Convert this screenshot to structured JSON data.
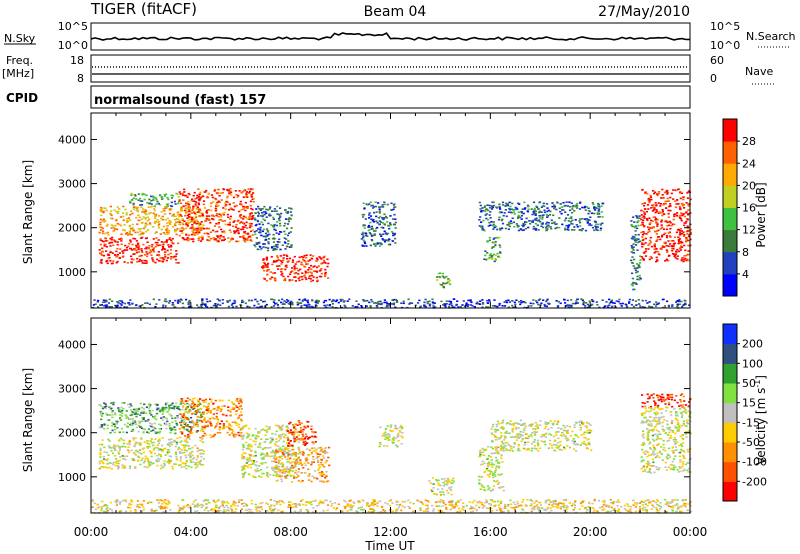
{
  "header": {
    "radar_title": "TIGER (fitACF)",
    "beam_label": "Beam 04",
    "date_label": "27/May/2010"
  },
  "params": {
    "nsky_label": "N.Sky",
    "nsearch_label": "N.Search",
    "freq_label": "Freq.",
    "freq_unit": "[MHz]",
    "nave_label": "Nave",
    "cpid_label": "CPID",
    "cpid_value": "normalsound (fast) 157",
    "noise_ticks": [
      "10^5",
      "10^0"
    ],
    "freq_ticks_left": [
      "18",
      "8"
    ],
    "nave_ticks_right": [
      "60",
      "0"
    ]
  },
  "chart_data": [
    {
      "type": "heatmap",
      "ylabel": "Slant Range [km]",
      "xlabel": "",
      "yticks": [
        "1000",
        "2000",
        "3000",
        "4000"
      ],
      "ylim": [
        180,
        4600
      ],
      "xlim": [
        0,
        24
      ],
      "colorbar": {
        "label": "Power [dB]",
        "ticks": [
          "4",
          "8",
          "12",
          "16",
          "20",
          "24",
          "28"
        ],
        "range": [
          0,
          32
        ],
        "colors": [
          "#0000ff",
          "#2040c0",
          "#3a7a3a",
          "#40c040",
          "#c0d020",
          "#ffaa00",
          "#ff6000",
          "#ff0000"
        ]
      },
      "echo_regions": [
        {
          "t0": 0.3,
          "t1": 3.5,
          "r0": 1200,
          "r1": 1800,
          "value": 30
        },
        {
          "t0": 0.3,
          "t1": 4.5,
          "r0": 1850,
          "r1": 2500,
          "value": 22
        },
        {
          "t0": 1.5,
          "t1": 3.5,
          "r0": 2500,
          "r1": 2800,
          "value": 12
        },
        {
          "t0": 3.5,
          "t1": 6.5,
          "r0": 1700,
          "r1": 2900,
          "value": 28
        },
        {
          "t0": 6.5,
          "t1": 8.0,
          "r0": 1500,
          "r1": 2500,
          "value": 8
        },
        {
          "t0": 6.8,
          "t1": 9.5,
          "r0": 800,
          "r1": 1400,
          "value": 30
        },
        {
          "t0": 10.8,
          "t1": 12.2,
          "r0": 1600,
          "r1": 2600,
          "value": 8
        },
        {
          "t0": 13.8,
          "t1": 14.4,
          "r0": 650,
          "r1": 1000,
          "value": 14
        },
        {
          "t0": 15.7,
          "t1": 16.4,
          "r0": 1250,
          "r1": 1800,
          "value": 12
        },
        {
          "t0": 15.5,
          "t1": 20.5,
          "r0": 1950,
          "r1": 2600,
          "value": 8
        },
        {
          "t0": 21.6,
          "t1": 22.0,
          "r0": 600,
          "r1": 2300,
          "value": 10
        },
        {
          "t0": 22.0,
          "t1": 24.0,
          "r0": 1250,
          "r1": 2900,
          "value": 30
        },
        {
          "t0": 0.0,
          "t1": 24.0,
          "r0": 200,
          "r1": 400,
          "value": 6
        }
      ]
    },
    {
      "type": "heatmap",
      "ylabel": "Slant Range [km]",
      "xlabel": "Time UT",
      "yticks": [
        "1000",
        "2000",
        "3000",
        "4000"
      ],
      "ylim": [
        180,
        4600
      ],
      "xlim": [
        0,
        24
      ],
      "xticks": [
        "00:00",
        "04:00",
        "08:00",
        "12:00",
        "16:00",
        "20:00",
        "00:00"
      ],
      "colorbar": {
        "label": "Velocity [m s",
        "label_sup": "-1",
        "label_end": "]",
        "ticks": [
          "200",
          "100",
          "50",
          "15",
          "-15",
          "-50",
          "-100",
          "-200"
        ],
        "range": [
          -250,
          250
        ],
        "colors": [
          "#ff0000",
          "#ff5000",
          "#ff9000",
          "#ffcc00",
          "#c0c0c0",
          "#80e040",
          "#30a030",
          "#305080",
          "#1030ff"
        ]
      },
      "echo_regions": [
        {
          "t0": 0.3,
          "t1": 4.5,
          "r0": 1200,
          "r1": 1900,
          "value": 0
        },
        {
          "t0": 0.3,
          "t1": 4.5,
          "r0": 2000,
          "r1": 2700,
          "value": 80
        },
        {
          "t0": 3.5,
          "t1": 6.0,
          "r0": 1900,
          "r1": 2800,
          "value": -120
        },
        {
          "t0": 6.0,
          "t1": 8.3,
          "r0": 1000,
          "r1": 2200,
          "value": 0
        },
        {
          "t0": 7.3,
          "t1": 9.5,
          "r0": 900,
          "r1": 1700,
          "value": -80
        },
        {
          "t0": 7.8,
          "t1": 9.0,
          "r0": 1700,
          "r1": 2300,
          "value": -180
        },
        {
          "t0": 11.5,
          "t1": 12.5,
          "r0": 1700,
          "r1": 2200,
          "value": 0
        },
        {
          "t0": 13.5,
          "t1": 14.5,
          "r0": 600,
          "r1": 1000,
          "value": 0
        },
        {
          "t0": 15.5,
          "t1": 16.5,
          "r0": 700,
          "r1": 1700,
          "value": 0
        },
        {
          "t0": 16.0,
          "t1": 20.0,
          "r0": 1600,
          "r1": 2300,
          "value": 0
        },
        {
          "t0": 22.0,
          "t1": 24.0,
          "r0": 1100,
          "r1": 2600,
          "value": 0
        },
        {
          "t0": 22.0,
          "t1": 24.0,
          "r0": 2600,
          "r1": 2900,
          "value": -200
        },
        {
          "t0": 0.0,
          "t1": 24.0,
          "r0": 200,
          "r1": 500,
          "value": -40
        }
      ]
    }
  ]
}
